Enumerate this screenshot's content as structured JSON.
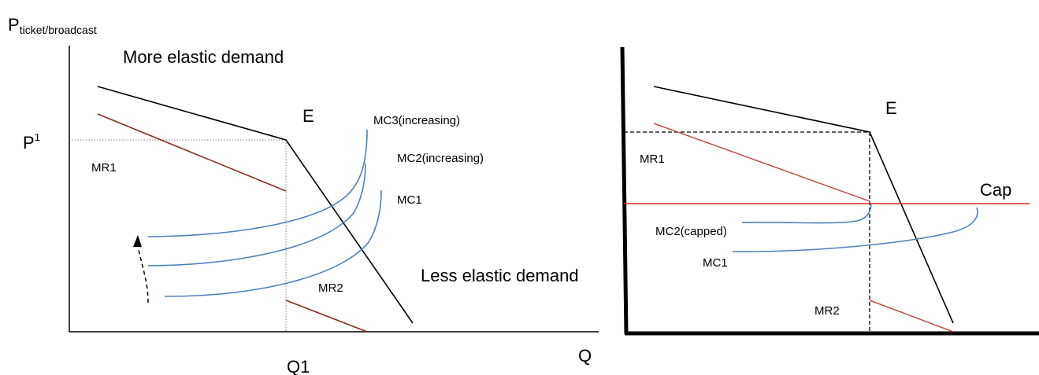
{
  "left_panel": {
    "y_axis_label": "P",
    "y_axis_label_subscript": "ticket/broadcast",
    "x_axis_label": "Q",
    "price_label": "P",
    "price_label_superscript": "1",
    "quantity_label": "Q1",
    "kink_label": "E",
    "upper_region_label": "More elastic demand",
    "lower_region_label": "Less elastic demand",
    "mr_upper_label": "MR1",
    "mr_lower_label": "MR2",
    "mc_labels": [
      "MC3(increasing)",
      "MC2(increasing)",
      "MC1"
    ]
  },
  "right_panel": {
    "kink_label": "E",
    "mr_upper_label": "MR1",
    "mr_lower_label": "MR2",
    "cap_label": "Cap",
    "mc_capped_label": "MC2(capped)",
    "mc1_label": "MC1"
  },
  "colors": {
    "demand": "#000000",
    "mr_left": "#8b2b22",
    "mr_right": "#c0504d",
    "mc": "#4f81bd",
    "cap": "#e0261f",
    "guide": "#808080"
  }
}
